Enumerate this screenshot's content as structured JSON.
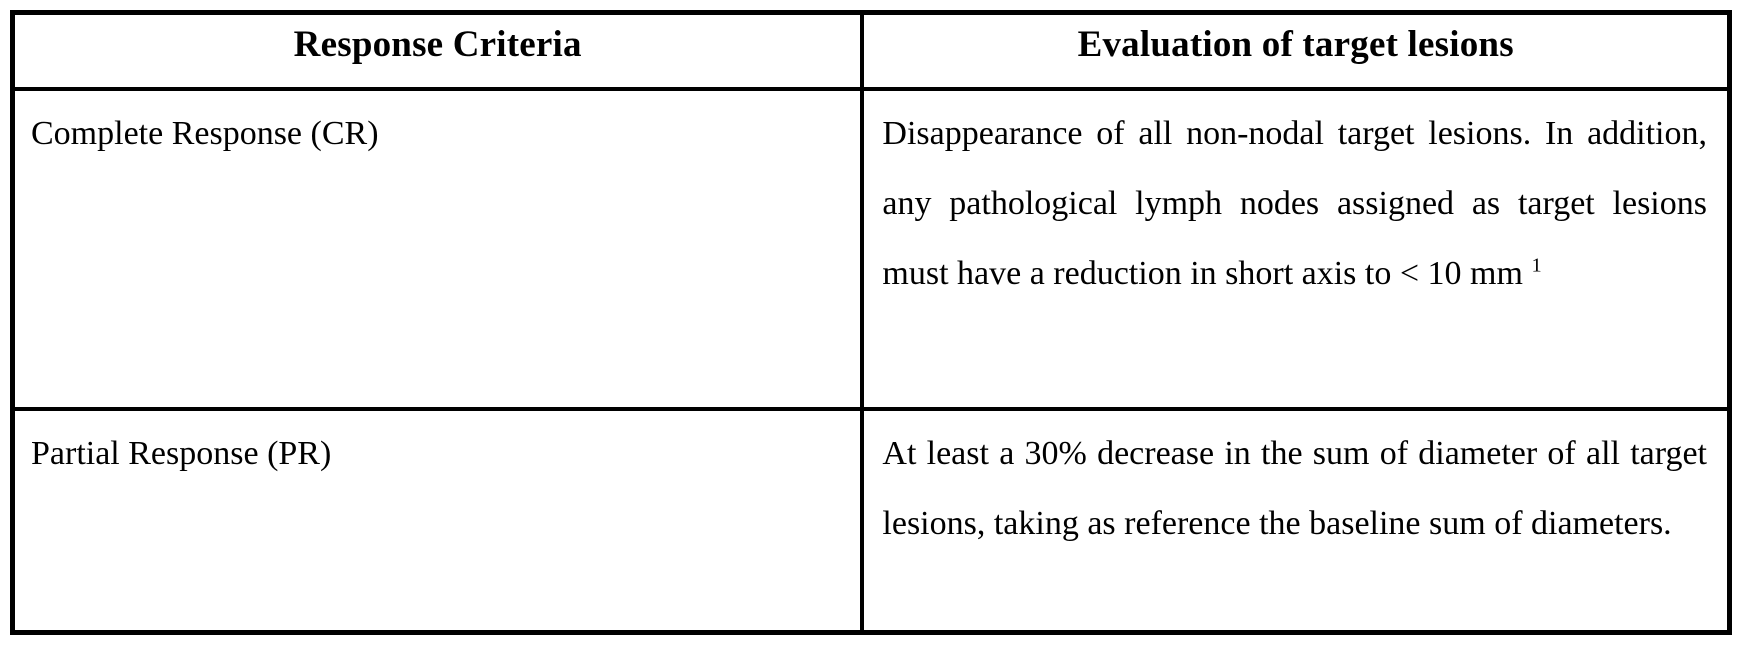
{
  "table": {
    "headers": [
      "Response Criteria",
      "Evaluation of target lesions"
    ],
    "rows": [
      {
        "criteria": "Complete Response (CR)",
        "evaluation": "Disappearance of all non-nodal target lesions. In addition, any pathological lymph nodes assigned as target lesions must have a reduction in short axis to < 10 mm ",
        "footnote_marker": "1"
      },
      {
        "criteria": "Partial Response (PR)",
        "evaluation": "At least a 30% decrease in the sum of diameter of all target lesions, taking as reference the baseline sum of diameters."
      }
    ],
    "colors": {
      "border": "#000000",
      "background": "#ffffff",
      "text": "#000000"
    }
  }
}
